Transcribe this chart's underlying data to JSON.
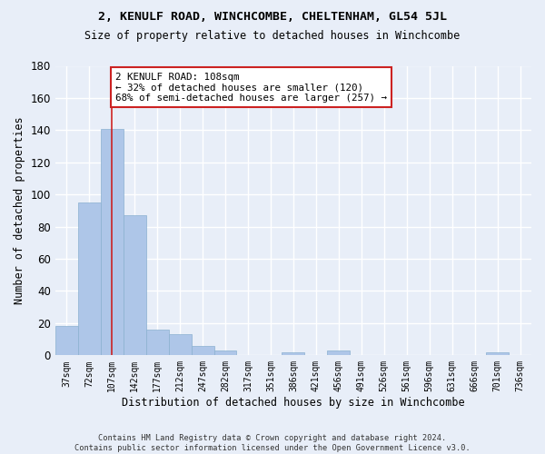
{
  "title1": "2, KENULF ROAD, WINCHCOMBE, CHELTENHAM, GL54 5JL",
  "title2": "Size of property relative to detached houses in Winchcombe",
  "xlabel": "Distribution of detached houses by size in Winchcombe",
  "ylabel": "Number of detached properties",
  "categories": [
    "37sqm",
    "72sqm",
    "107sqm",
    "142sqm",
    "177sqm",
    "212sqm",
    "247sqm",
    "282sqm",
    "317sqm",
    "351sqm",
    "386sqm",
    "421sqm",
    "456sqm",
    "491sqm",
    "526sqm",
    "561sqm",
    "596sqm",
    "631sqm",
    "666sqm",
    "701sqm",
    "736sqm"
  ],
  "values": [
    18,
    95,
    141,
    87,
    16,
    13,
    6,
    3,
    0,
    0,
    2,
    0,
    3,
    0,
    0,
    0,
    0,
    0,
    0,
    2,
    0
  ],
  "bar_color": "#aec6e8",
  "bar_edge_color": "#8ab0d0",
  "background_color": "#e8eef8",
  "grid_color": "#ffffff",
  "vline_x": 2,
  "vline_color": "#cc2222",
  "annotation_text": "2 KENULF ROAD: 108sqm\n← 32% of detached houses are smaller (120)\n68% of semi-detached houses are larger (257) →",
  "annotation_box_color": "#ffffff",
  "annotation_box_edge": "#cc2222",
  "footer": "Contains HM Land Registry data © Crown copyright and database right 2024.\nContains public sector information licensed under the Open Government Licence v3.0.",
  "ylim": [
    0,
    180
  ],
  "yticks": [
    0,
    20,
    40,
    60,
    80,
    100,
    120,
    140,
    160,
    180
  ]
}
